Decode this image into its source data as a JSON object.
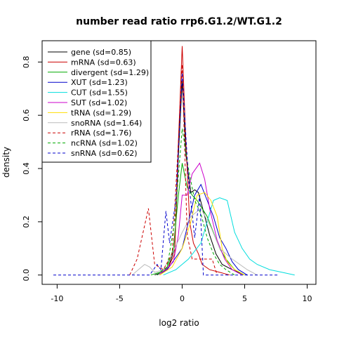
{
  "chart_data": {
    "type": "line",
    "title": "number read ratio rrp6.G1.2/WT.G1.2",
    "xlabel": "log2 ratio",
    "ylabel": "density",
    "xlim": [
      -11.2,
      10.7
    ],
    "ylim": [
      -0.035,
      0.88
    ],
    "xticks": [
      -10,
      -5,
      0,
      5,
      10
    ],
    "yticks": [
      0.0,
      0.2,
      0.4,
      0.6,
      0.8
    ],
    "grid": false,
    "legend_position": "top-left",
    "series": [
      {
        "name": "gene (sd=0.85)",
        "color": "#000000",
        "dash": false,
        "x": [
          -2.2,
          -1.6,
          -1.1,
          -0.6,
          -0.3,
          0,
          0.3,
          0.7,
          1.0,
          1.3,
          1.7,
          2.2,
          2.7,
          3.2,
          4.0,
          5.0
        ],
        "y": [
          0,
          0.01,
          0.03,
          0.1,
          0.45,
          0.73,
          0.45,
          0.31,
          0.32,
          0.31,
          0.24,
          0.15,
          0.08,
          0.04,
          0.02,
          0
        ]
      },
      {
        "name": "mRNA (sd=0.63)",
        "color": "#cc0000",
        "dash": false,
        "x": [
          -1.8,
          -1.2,
          -0.6,
          -0.3,
          0,
          0.3,
          0.6,
          0.9,
          1.3,
          1.6,
          2.2,
          3.0,
          3.8
        ],
        "y": [
          0,
          0.02,
          0.08,
          0.5,
          0.86,
          0.5,
          0.2,
          0.12,
          0.08,
          0.04,
          0.02,
          0.01,
          0
        ]
      },
      {
        "name": "divergent (sd=1.29)",
        "color": "#00aa00",
        "dash": false,
        "x": [
          -2.5,
          -1.8,
          -1.2,
          -0.7,
          -0.3,
          0,
          0.4,
          0.8,
          1.2,
          1.6,
          2.0,
          2.5,
          3.0,
          3.5,
          4.2,
          5.0
        ],
        "y": [
          0,
          0.01,
          0.03,
          0.1,
          0.3,
          0.42,
          0.33,
          0.3,
          0.28,
          0.25,
          0.22,
          0.16,
          0.1,
          0.06,
          0.02,
          0
        ]
      },
      {
        "name": "XUT (sd=1.23)",
        "color": "#0000cc",
        "dash": false,
        "x": [
          -2.0,
          -1.2,
          -0.6,
          0,
          0.5,
          1.0,
          1.5,
          2.0,
          2.5,
          3.0,
          3.5,
          4.0,
          4.5,
          5.2
        ],
        "y": [
          0,
          0.02,
          0.06,
          0.1,
          0.2,
          0.3,
          0.34,
          0.28,
          0.22,
          0.14,
          0.1,
          0.05,
          0.02,
          0
        ]
      },
      {
        "name": "CUT (sd=1.55)",
        "color": "#00dddd",
        "dash": false,
        "x": [
          -1.5,
          -0.5,
          0.5,
          1.5,
          2.0,
          2.5,
          3.0,
          3.6,
          4.2,
          4.8,
          5.4,
          6.0,
          7.0,
          8.0,
          9.0
        ],
        "y": [
          0,
          0.02,
          0.06,
          0.12,
          0.2,
          0.28,
          0.29,
          0.28,
          0.16,
          0.1,
          0.06,
          0.04,
          0.02,
          0.01,
          0
        ]
      },
      {
        "name": "SUT (sd=1.02)",
        "color": "#cc00cc",
        "dash": false,
        "x": [
          -2.0,
          -1.3,
          -0.7,
          -0.3,
          0,
          0.4,
          0.8,
          1.4,
          1.8,
          2.2,
          2.8,
          3.4,
          4.0,
          4.8
        ],
        "y": [
          0,
          0.02,
          0.05,
          0.15,
          0.3,
          0.3,
          0.38,
          0.42,
          0.36,
          0.25,
          0.13,
          0.06,
          0.02,
          0
        ]
      },
      {
        "name": "tRNA (sd=1.29)",
        "color": "#ffdd00",
        "dash": false,
        "x": [
          -1.8,
          -0.8,
          0,
          0.7,
          1.2,
          1.8,
          2.3,
          2.8,
          3.2,
          3.6,
          4.2,
          5.0
        ],
        "y": [
          0,
          0.03,
          0.1,
          0.2,
          0.3,
          0.31,
          0.28,
          0.22,
          0.1,
          0.05,
          0.02,
          0
        ]
      },
      {
        "name": "snoRNA (sd=1.64)",
        "color": "#bbbbbb",
        "dash": false,
        "x": [
          -4.0,
          -3.5,
          -3.0,
          -2.6,
          -2.2,
          -1.5,
          -0.8,
          0,
          0.7,
          1.5,
          2.3,
          3.0,
          4.0,
          5.2,
          6.0
        ],
        "y": [
          0,
          0.02,
          0.04,
          0.03,
          0.01,
          0.02,
          0.08,
          0.16,
          0.22,
          0.25,
          0.18,
          0.1,
          0.06,
          0.02,
          0
        ]
      },
      {
        "name": "rRNA (sd=1.76)",
        "color": "#cc0000",
        "dash": true,
        "x": [
          -4.2,
          -3.6,
          -2.7,
          -2.2,
          -1.5,
          -0.8,
          -0.3,
          0,
          0.4,
          0.8,
          1.6,
          2.4,
          2.8
        ],
        "y": [
          0,
          0.06,
          0.25,
          0.04,
          0.02,
          0.08,
          0.5,
          0.79,
          0.15,
          0.06,
          0.06,
          0.06,
          0
        ]
      },
      {
        "name": "ncRNA (sd=1.02)",
        "color": "#00aa00",
        "dash": true,
        "x": [
          -2.0,
          -1.2,
          -0.6,
          0,
          0.5,
          1.0,
          1.5,
          2.0,
          2.5,
          3.0,
          3.5,
          4.2
        ],
        "y": [
          0,
          0.03,
          0.2,
          0.55,
          0.4,
          0.28,
          0.23,
          0.14,
          0.08,
          0.04,
          0.02,
          0
        ]
      },
      {
        "name": "snRNA (sd=0.62)",
        "color": "#0000cc",
        "dash": true,
        "x": [
          -10.3,
          -2.6,
          -2.0,
          -1.7,
          -1.3,
          -1.0,
          -0.5,
          0,
          0.5,
          1.0,
          1.4,
          1.7,
          2.4,
          7.7
        ],
        "y": [
          0,
          0,
          0.04,
          0.02,
          0.24,
          0.12,
          0.28,
          0.76,
          0.36,
          0.14,
          0.3,
          0,
          0,
          0
        ]
      }
    ]
  }
}
